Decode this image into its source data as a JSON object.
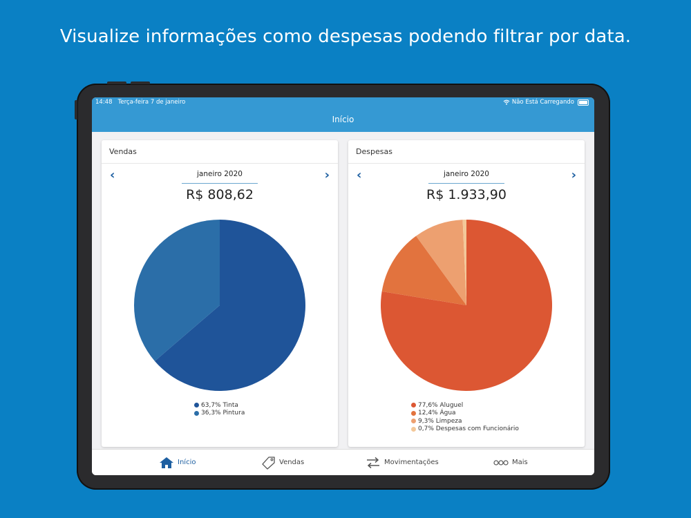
{
  "headline": "Visualize informações como despesas podendo filtrar por data.",
  "status": {
    "time": "14:48",
    "date": "Terça-feira 7 de janeiro",
    "charging": "Não Está Carregando"
  },
  "nav": {
    "title": "Início"
  },
  "cards": [
    {
      "title": "Vendas",
      "month": "janeiro 2020",
      "amount": "R$ 808,62",
      "legend": [
        {
          "label": "63,7% Tinta",
          "color": "#1f5499"
        },
        {
          "label": "36,3% Pintura",
          "color": "#2b6ea8"
        }
      ]
    },
    {
      "title": "Despesas",
      "month": "janeiro 2020",
      "amount": "R$ 1.933,90",
      "legend": [
        {
          "label": "77,6% Aluguel",
          "color": "#dc5733"
        },
        {
          "label": "12,4% Água",
          "color": "#e2733e"
        },
        {
          "label": "9,3% Limpeza",
          "color": "#eda070"
        },
        {
          "label": "0,7% Despesas com Funcionário",
          "color": "#f3c899"
        }
      ]
    }
  ],
  "chart_data": [
    {
      "type": "pie",
      "title": "Vendas",
      "categories": [
        "Tinta",
        "Pintura"
      ],
      "values": [
        63.7,
        36.3
      ],
      "colors": [
        "#1f5499",
        "#2b6ea8"
      ]
    },
    {
      "type": "pie",
      "title": "Despesas",
      "categories": [
        "Aluguel",
        "Água",
        "Limpeza",
        "Despesas com Funcionário"
      ],
      "values": [
        77.6,
        12.4,
        9.3,
        0.7
      ],
      "colors": [
        "#dc5733",
        "#e2733e",
        "#eda070",
        "#f3c899"
      ]
    }
  ],
  "tabs": [
    {
      "label": "Início",
      "icon": "home-icon",
      "active": true
    },
    {
      "label": "Vendas",
      "icon": "tag-icon",
      "active": false
    },
    {
      "label": "Movimentações",
      "icon": "transfer-arrows-icon",
      "active": false
    },
    {
      "label": "Mais",
      "icon": "more-dots-icon",
      "active": false
    }
  ]
}
